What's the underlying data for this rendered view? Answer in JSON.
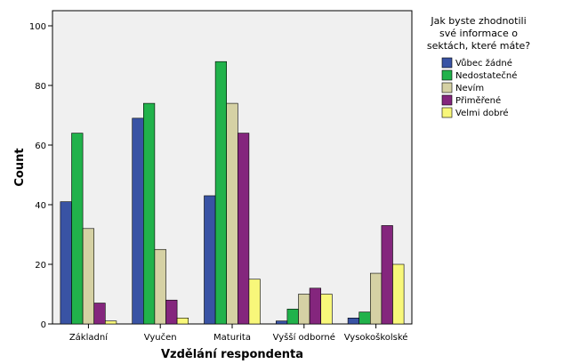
{
  "chart_data": {
    "type": "bar",
    "xlabel": "Vzdělání respondenta",
    "ylabel": "Count",
    "ylim": [
      0,
      100
    ],
    "yticks": [
      0,
      20,
      40,
      60,
      80,
      100
    ],
    "grid": false,
    "legend_placement": "right",
    "legend_title": [
      "Jak byste zhodnotili",
      "své informace o",
      "sektách, které máte?"
    ],
    "categories": [
      "Základní",
      "Vyučen",
      "Maturita",
      "Vyšší odborné",
      "Vysokoškolské"
    ],
    "series": [
      {
        "name": "Vůbec žádné",
        "color": "#3953a4",
        "values": [
          41,
          69,
          43,
          1,
          2
        ]
      },
      {
        "name": "Nedostatečné",
        "color": "#21b24b",
        "values": [
          64,
          74,
          88,
          5,
          4
        ]
      },
      {
        "name": "Nevím",
        "color": "#d5d1a4",
        "values": [
          32,
          25,
          74,
          10,
          17
        ]
      },
      {
        "name": "Přiměřené",
        "color": "#84267d",
        "values": [
          7,
          8,
          64,
          12,
          33
        ]
      },
      {
        "name": "Velmi dobré",
        "color": "#f8f77a",
        "values": [
          1,
          2,
          15,
          10,
          20
        ]
      }
    ]
  }
}
